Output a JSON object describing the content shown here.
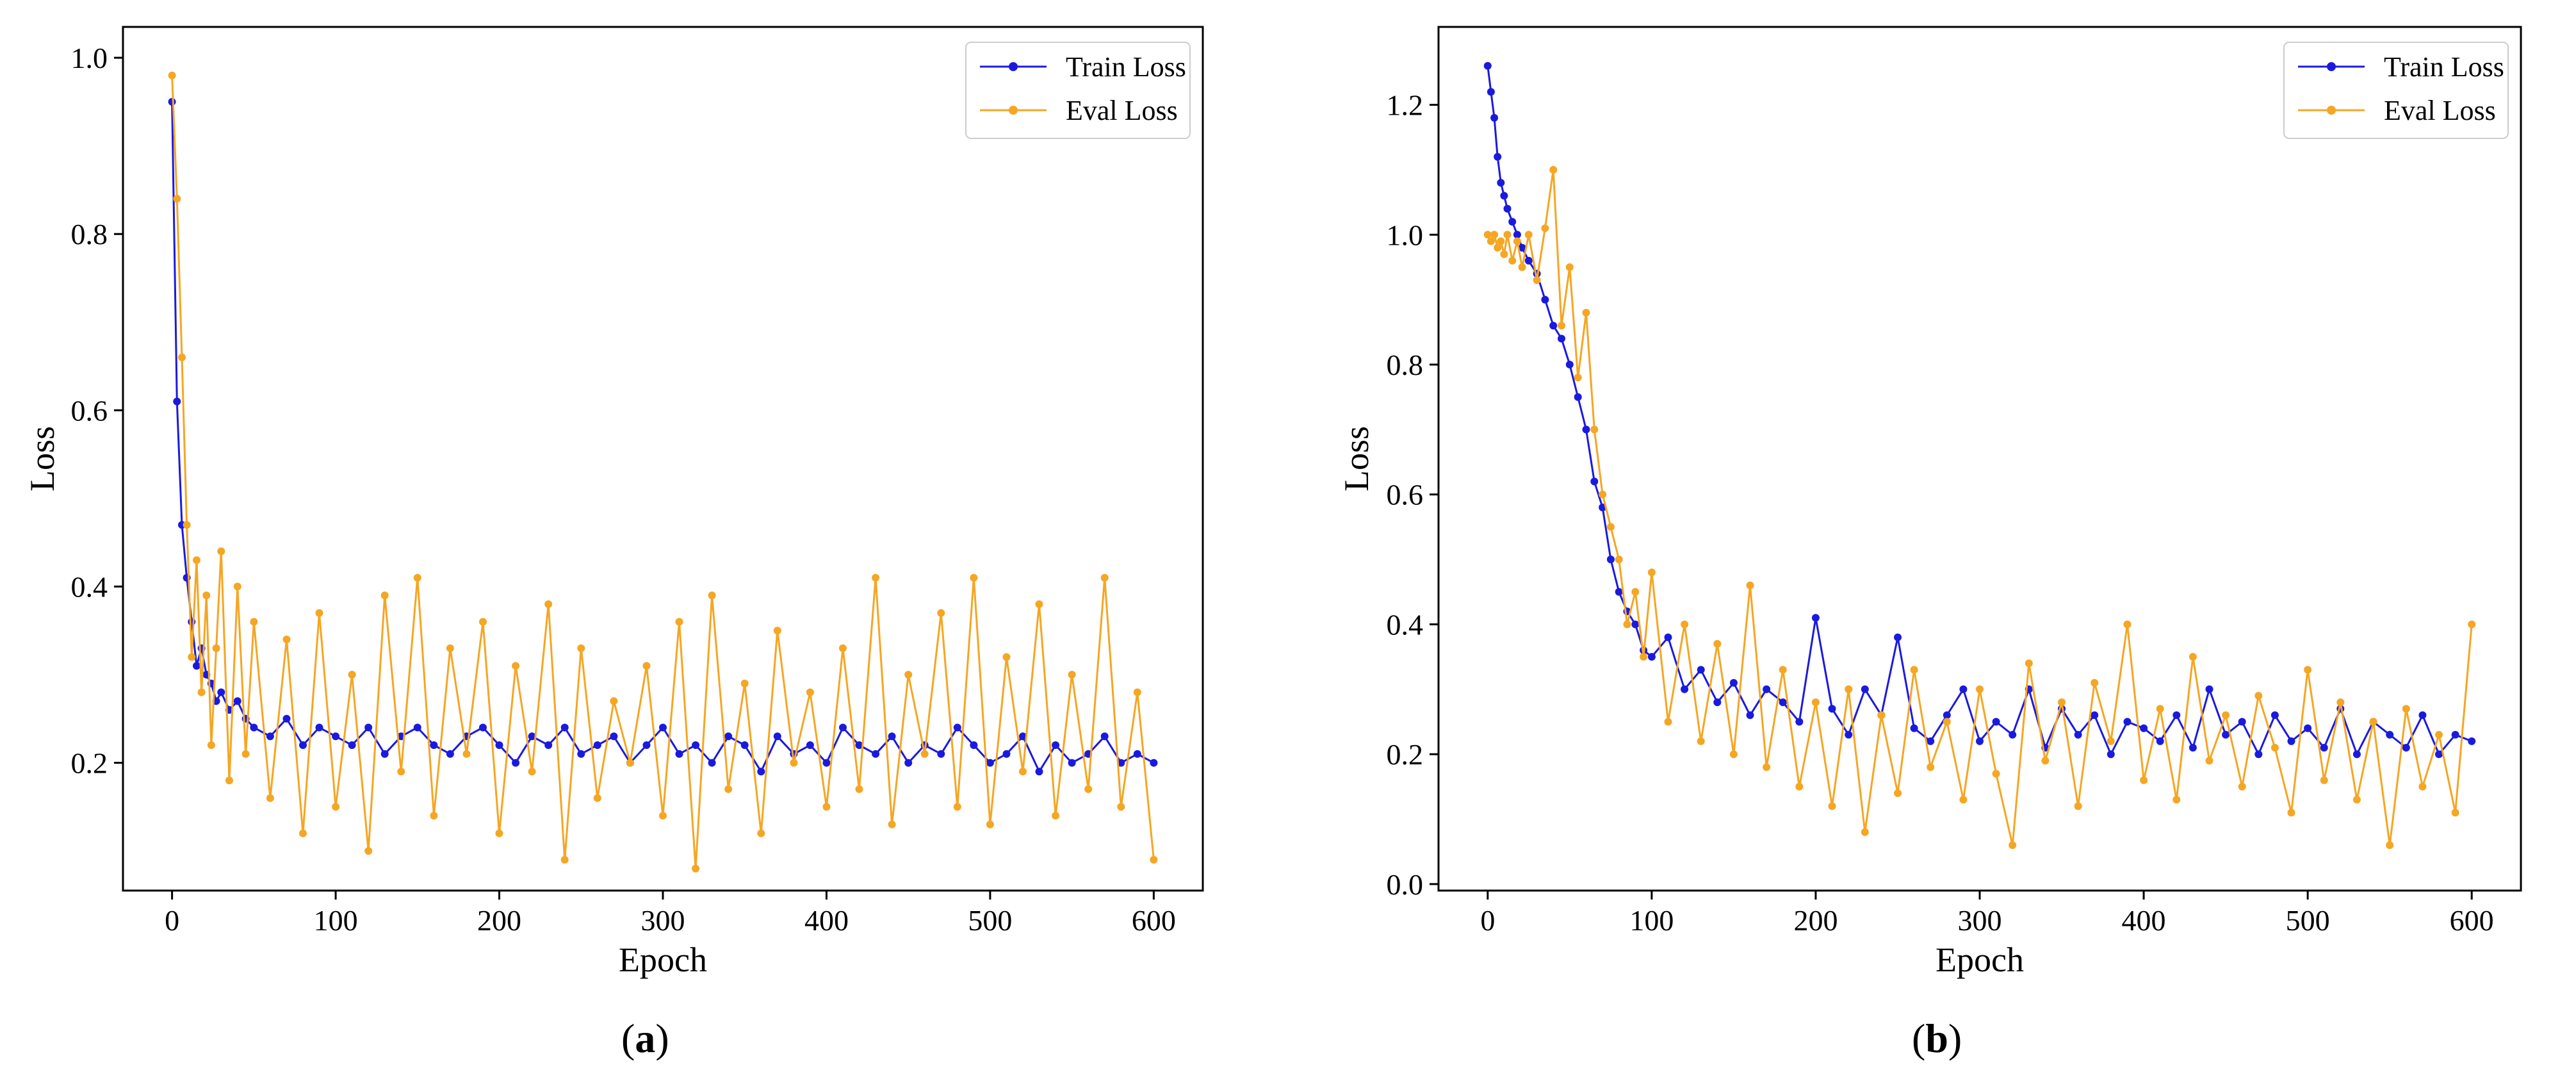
{
  "figure": {
    "captions": [
      "(a)",
      "(b)"
    ],
    "caption_letters": [
      "a",
      "b"
    ]
  },
  "colors": {
    "train": "#1a1adf",
    "eval": "#f5a623",
    "axis": "#000000",
    "legend_border": "#cccccc"
  },
  "chart_data": [
    {
      "type": "line",
      "title": "",
      "caption": "(a)",
      "xlabel": "Epoch",
      "ylabel": "Loss",
      "xlim": [
        -30,
        630
      ],
      "ylim": [
        0.055,
        1.035
      ],
      "xticks": [
        0,
        100,
        200,
        300,
        400,
        500,
        600
      ],
      "xtick_labels": [
        "0",
        "100",
        "200",
        "300",
        "400",
        "500",
        "600"
      ],
      "yticks": [
        0.2,
        0.4,
        0.6,
        0.8,
        1.0
      ],
      "ytick_labels": [
        "0.2",
        "0.4",
        "0.6",
        "0.8",
        "1.0"
      ],
      "legend": {
        "position": "top-right",
        "entries": [
          "Train Loss",
          "Eval Loss"
        ]
      },
      "series": [
        {
          "name": "Train Loss",
          "color": "#1a1adf",
          "x": [
            0,
            3,
            6,
            9,
            12,
            15,
            18,
            21,
            24,
            27,
            30,
            35,
            40,
            45,
            50,
            60,
            70,
            80,
            90,
            100,
            110,
            120,
            130,
            140,
            150,
            160,
            170,
            180,
            190,
            200,
            210,
            220,
            230,
            240,
            250,
            260,
            270,
            280,
            290,
            300,
            310,
            320,
            330,
            340,
            350,
            360,
            370,
            380,
            390,
            400,
            410,
            420,
            430,
            440,
            450,
            460,
            470,
            480,
            490,
            500,
            510,
            520,
            530,
            540,
            550,
            560,
            570,
            580,
            590,
            600
          ],
          "values": [
            0.95,
            0.61,
            0.47,
            0.41,
            0.36,
            0.31,
            0.33,
            0.3,
            0.29,
            0.27,
            0.28,
            0.26,
            0.27,
            0.25,
            0.24,
            0.23,
            0.25,
            0.22,
            0.24,
            0.23,
            0.22,
            0.24,
            0.21,
            0.23,
            0.24,
            0.22,
            0.21,
            0.23,
            0.24,
            0.22,
            0.2,
            0.23,
            0.22,
            0.24,
            0.21,
            0.22,
            0.23,
            0.2,
            0.22,
            0.24,
            0.21,
            0.22,
            0.2,
            0.23,
            0.22,
            0.19,
            0.23,
            0.21,
            0.22,
            0.2,
            0.24,
            0.22,
            0.21,
            0.23,
            0.2,
            0.22,
            0.21,
            0.24,
            0.22,
            0.2,
            0.21,
            0.23,
            0.19,
            0.22,
            0.2,
            0.21,
            0.23,
            0.2,
            0.21,
            0.2
          ]
        },
        {
          "name": "Eval Loss",
          "color": "#f5a623",
          "x": [
            0,
            3,
            6,
            9,
            12,
            15,
            18,
            21,
            24,
            27,
            30,
            35,
            40,
            45,
            50,
            60,
            70,
            80,
            90,
            100,
            110,
            120,
            130,
            140,
            150,
            160,
            170,
            180,
            190,
            200,
            210,
            220,
            230,
            240,
            250,
            260,
            270,
            280,
            290,
            300,
            310,
            320,
            330,
            340,
            350,
            360,
            370,
            380,
            390,
            400,
            410,
            420,
            430,
            440,
            450,
            460,
            470,
            480,
            490,
            500,
            510,
            520,
            530,
            540,
            550,
            560,
            570,
            580,
            590,
            600
          ],
          "values": [
            0.98,
            0.84,
            0.66,
            0.47,
            0.32,
            0.43,
            0.28,
            0.39,
            0.22,
            0.33,
            0.44,
            0.18,
            0.4,
            0.21,
            0.36,
            0.16,
            0.34,
            0.12,
            0.37,
            0.15,
            0.3,
            0.1,
            0.39,
            0.19,
            0.41,
            0.14,
            0.33,
            0.21,
            0.36,
            0.12,
            0.31,
            0.19,
            0.38,
            0.09,
            0.33,
            0.16,
            0.27,
            0.2,
            0.31,
            0.14,
            0.36,
            0.08,
            0.39,
            0.17,
            0.29,
            0.12,
            0.35,
            0.2,
            0.28,
            0.15,
            0.33,
            0.17,
            0.41,
            0.13,
            0.3,
            0.21,
            0.37,
            0.15,
            0.41,
            0.13,
            0.32,
            0.19,
            0.38,
            0.14,
            0.3,
            0.17,
            0.41,
            0.15,
            0.28,
            0.09
          ]
        }
      ]
    },
    {
      "type": "line",
      "title": "",
      "caption": "(b)",
      "xlabel": "Epoch",
      "ylabel": "Loss",
      "xlim": [
        -30,
        630
      ],
      "ylim": [
        -0.01,
        1.32
      ],
      "xticks": [
        0,
        100,
        200,
        300,
        400,
        500,
        600
      ],
      "xtick_labels": [
        "0",
        "100",
        "200",
        "300",
        "400",
        "500",
        "600"
      ],
      "yticks": [
        0.0,
        0.2,
        0.4,
        0.6,
        0.8,
        1.0,
        1.2
      ],
      "ytick_labels": [
        "0.0",
        "0.2",
        "0.4",
        "0.6",
        "0.8",
        "1.0",
        "1.2"
      ],
      "legend": {
        "position": "top-right",
        "entries": [
          "Train Loss",
          "Eval Loss"
        ]
      },
      "series": [
        {
          "name": "Train Loss",
          "color": "#1a1adf",
          "x": [
            0,
            2,
            4,
            6,
            8,
            10,
            12,
            15,
            18,
            21,
            25,
            30,
            35,
            40,
            45,
            50,
            55,
            60,
            65,
            70,
            75,
            80,
            85,
            90,
            95,
            100,
            110,
            120,
            130,
            140,
            150,
            160,
            170,
            180,
            190,
            200,
            210,
            220,
            230,
            240,
            250,
            260,
            270,
            280,
            290,
            300,
            310,
            320,
            330,
            340,
            350,
            360,
            370,
            380,
            390,
            400,
            410,
            420,
            430,
            440,
            450,
            460,
            470,
            480,
            490,
            500,
            510,
            520,
            530,
            540,
            550,
            560,
            570,
            580,
            590,
            600
          ],
          "values": [
            1.26,
            1.22,
            1.18,
            1.12,
            1.08,
            1.06,
            1.04,
            1.02,
            1.0,
            0.98,
            0.96,
            0.94,
            0.9,
            0.86,
            0.84,
            0.8,
            0.75,
            0.7,
            0.62,
            0.58,
            0.5,
            0.45,
            0.42,
            0.4,
            0.36,
            0.35,
            0.38,
            0.3,
            0.33,
            0.28,
            0.31,
            0.26,
            0.3,
            0.28,
            0.25,
            0.41,
            0.27,
            0.23,
            0.3,
            0.26,
            0.38,
            0.24,
            0.22,
            0.26,
            0.3,
            0.22,
            0.25,
            0.23,
            0.3,
            0.21,
            0.27,
            0.23,
            0.26,
            0.2,
            0.25,
            0.24,
            0.22,
            0.26,
            0.21,
            0.3,
            0.23,
            0.25,
            0.2,
            0.26,
            0.22,
            0.24,
            0.21,
            0.27,
            0.2,
            0.25,
            0.23,
            0.21,
            0.26,
            0.2,
            0.23,
            0.22
          ]
        },
        {
          "name": "Eval Loss",
          "color": "#f5a623",
          "x": [
            0,
            2,
            4,
            6,
            8,
            10,
            12,
            15,
            18,
            21,
            25,
            30,
            35,
            40,
            45,
            50,
            55,
            60,
            65,
            70,
            75,
            80,
            85,
            90,
            95,
            100,
            110,
            120,
            130,
            140,
            150,
            160,
            170,
            180,
            190,
            200,
            210,
            220,
            230,
            240,
            250,
            260,
            270,
            280,
            290,
            300,
            310,
            320,
            330,
            340,
            350,
            360,
            370,
            380,
            390,
            400,
            410,
            420,
            430,
            440,
            450,
            460,
            470,
            480,
            490,
            500,
            510,
            520,
            530,
            540,
            550,
            560,
            570,
            580,
            590,
            600
          ],
          "values": [
            1.0,
            0.99,
            1.0,
            0.98,
            0.99,
            0.97,
            1.0,
            0.96,
            0.99,
            0.95,
            1.0,
            0.93,
            1.01,
            1.1,
            0.86,
            0.95,
            0.78,
            0.88,
            0.7,
            0.6,
            0.55,
            0.5,
            0.4,
            0.45,
            0.35,
            0.48,
            0.25,
            0.4,
            0.22,
            0.37,
            0.2,
            0.46,
            0.18,
            0.33,
            0.15,
            0.28,
            0.12,
            0.3,
            0.08,
            0.26,
            0.14,
            0.33,
            0.18,
            0.25,
            0.13,
            0.3,
            0.17,
            0.06,
            0.34,
            0.19,
            0.28,
            0.12,
            0.31,
            0.22,
            0.4,
            0.16,
            0.27,
            0.13,
            0.35,
            0.19,
            0.26,
            0.15,
            0.29,
            0.21,
            0.11,
            0.33,
            0.16,
            0.28,
            0.13,
            0.25,
            0.06,
            0.27,
            0.15,
            0.23,
            0.11,
            0.4
          ]
        }
      ]
    }
  ]
}
